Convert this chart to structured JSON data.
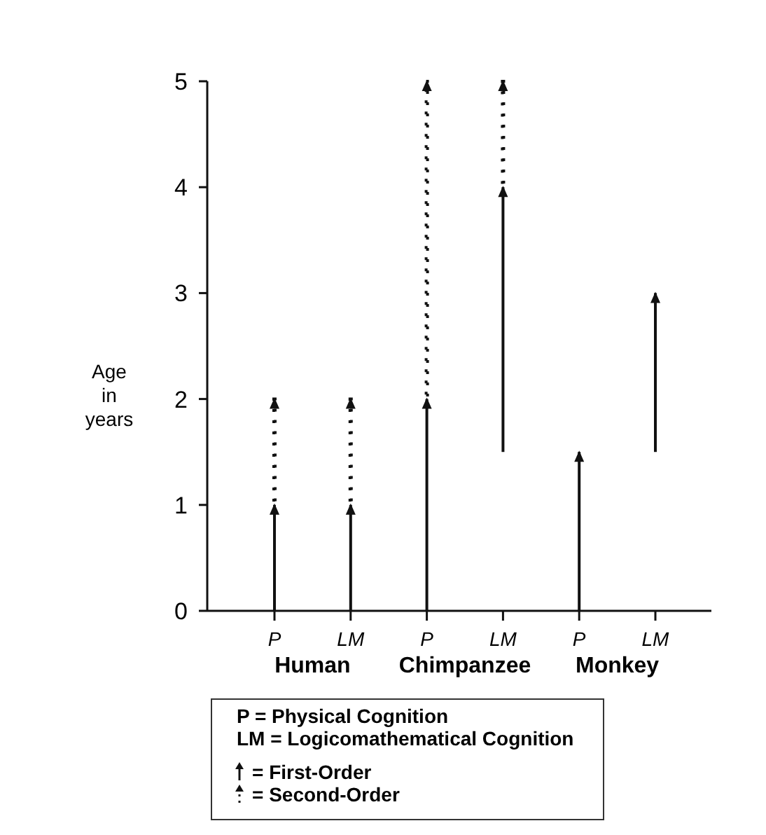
{
  "chart_data": {
    "type": "bar",
    "ylabel": "Age in years",
    "categories": [
      "P",
      "LM",
      "P",
      "LM",
      "P",
      "LM"
    ],
    "series": [
      {
        "name": "= First-Order",
        "color": "#111111",
        "line_style": "solid",
        "base": [
          0,
          0,
          0,
          1.5,
          0,
          1.5
        ],
        "values": [
          1,
          1,
          2,
          2.5,
          1.5,
          1.5
        ]
      },
      {
        "name": "= Second-Order",
        "color": "#111111",
        "line_style": "dotted",
        "base": [
          1,
          1,
          2,
          4,
          null,
          null
        ],
        "values": [
          1,
          1,
          3,
          1,
          null,
          null
        ]
      }
    ],
    "ylim": [
      0,
      5
    ],
    "yticks": [
      0,
      1,
      2,
      3,
      4,
      5
    ],
    "grid": false,
    "legend": "bottom",
    "annotations": [
      "Human",
      "Chimpanzee",
      "Monkey",
      "P = Physical Cognition",
      "LM = Logicomathematical Cognition"
    ]
  }
}
